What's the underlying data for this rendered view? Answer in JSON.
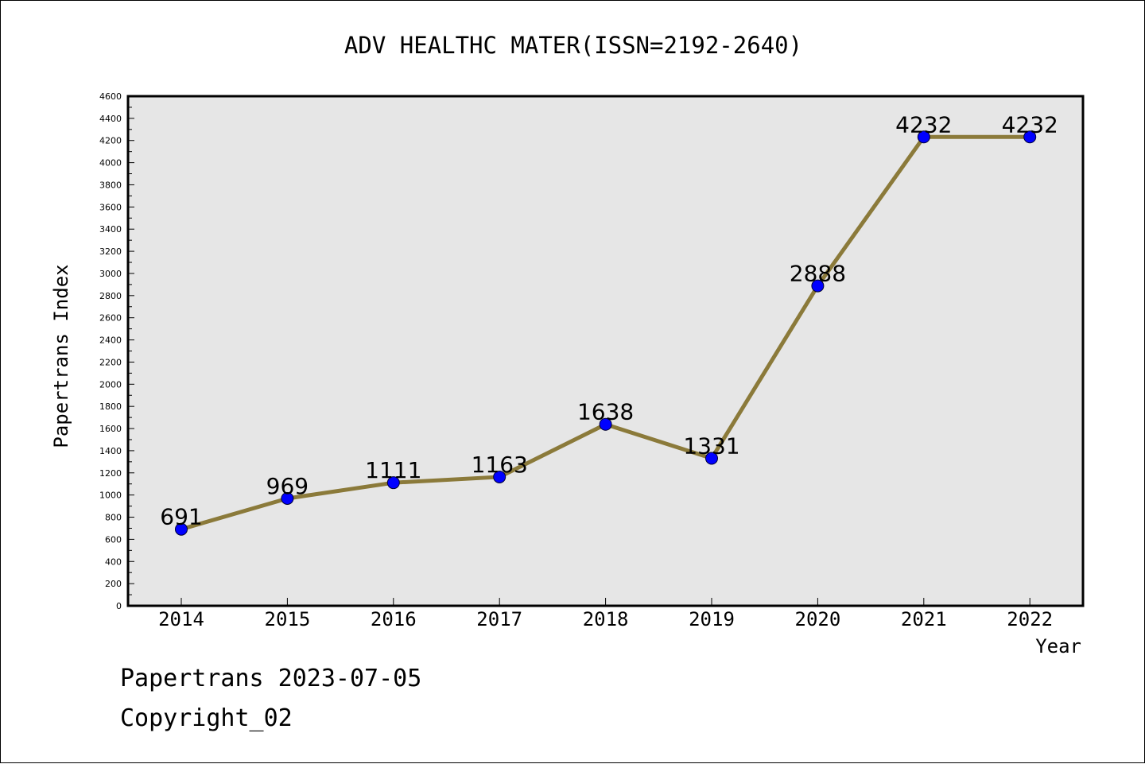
{
  "chart_data": {
    "type": "line",
    "title": "ADV HEALTHC MATER(ISSN=2192-2640)",
    "xlabel": "Year",
    "ylabel": "Papertrans Index",
    "categories": [
      "2014",
      "2015",
      "2016",
      "2017",
      "2018",
      "2019",
      "2020",
      "2021",
      "2022"
    ],
    "values": [
      691,
      969,
      1111,
      1163,
      1638,
      1331,
      2888,
      4232,
      4232
    ],
    "data_labels": [
      "691",
      "969",
      "1111",
      "1163",
      "1638",
      "1331",
      "2888",
      "4232",
      "4232"
    ],
    "ylim": [
      0,
      4600
    ],
    "yticks": [
      0,
      200,
      400,
      600,
      800,
      1000,
      1200,
      1400,
      1600,
      1800,
      2000,
      2200,
      2400,
      2600,
      2800,
      3000,
      3200,
      3400,
      3600,
      3800,
      4000,
      4200,
      4400,
      4600
    ],
    "grid": false,
    "legend": "none",
    "colors": {
      "line": "#8b7a3a",
      "marker": "#0000ff",
      "plot_background": "#e6e6e6"
    }
  },
  "footer": {
    "line1": "Papertrans 2023-07-05",
    "line2": "Copyright_02"
  }
}
